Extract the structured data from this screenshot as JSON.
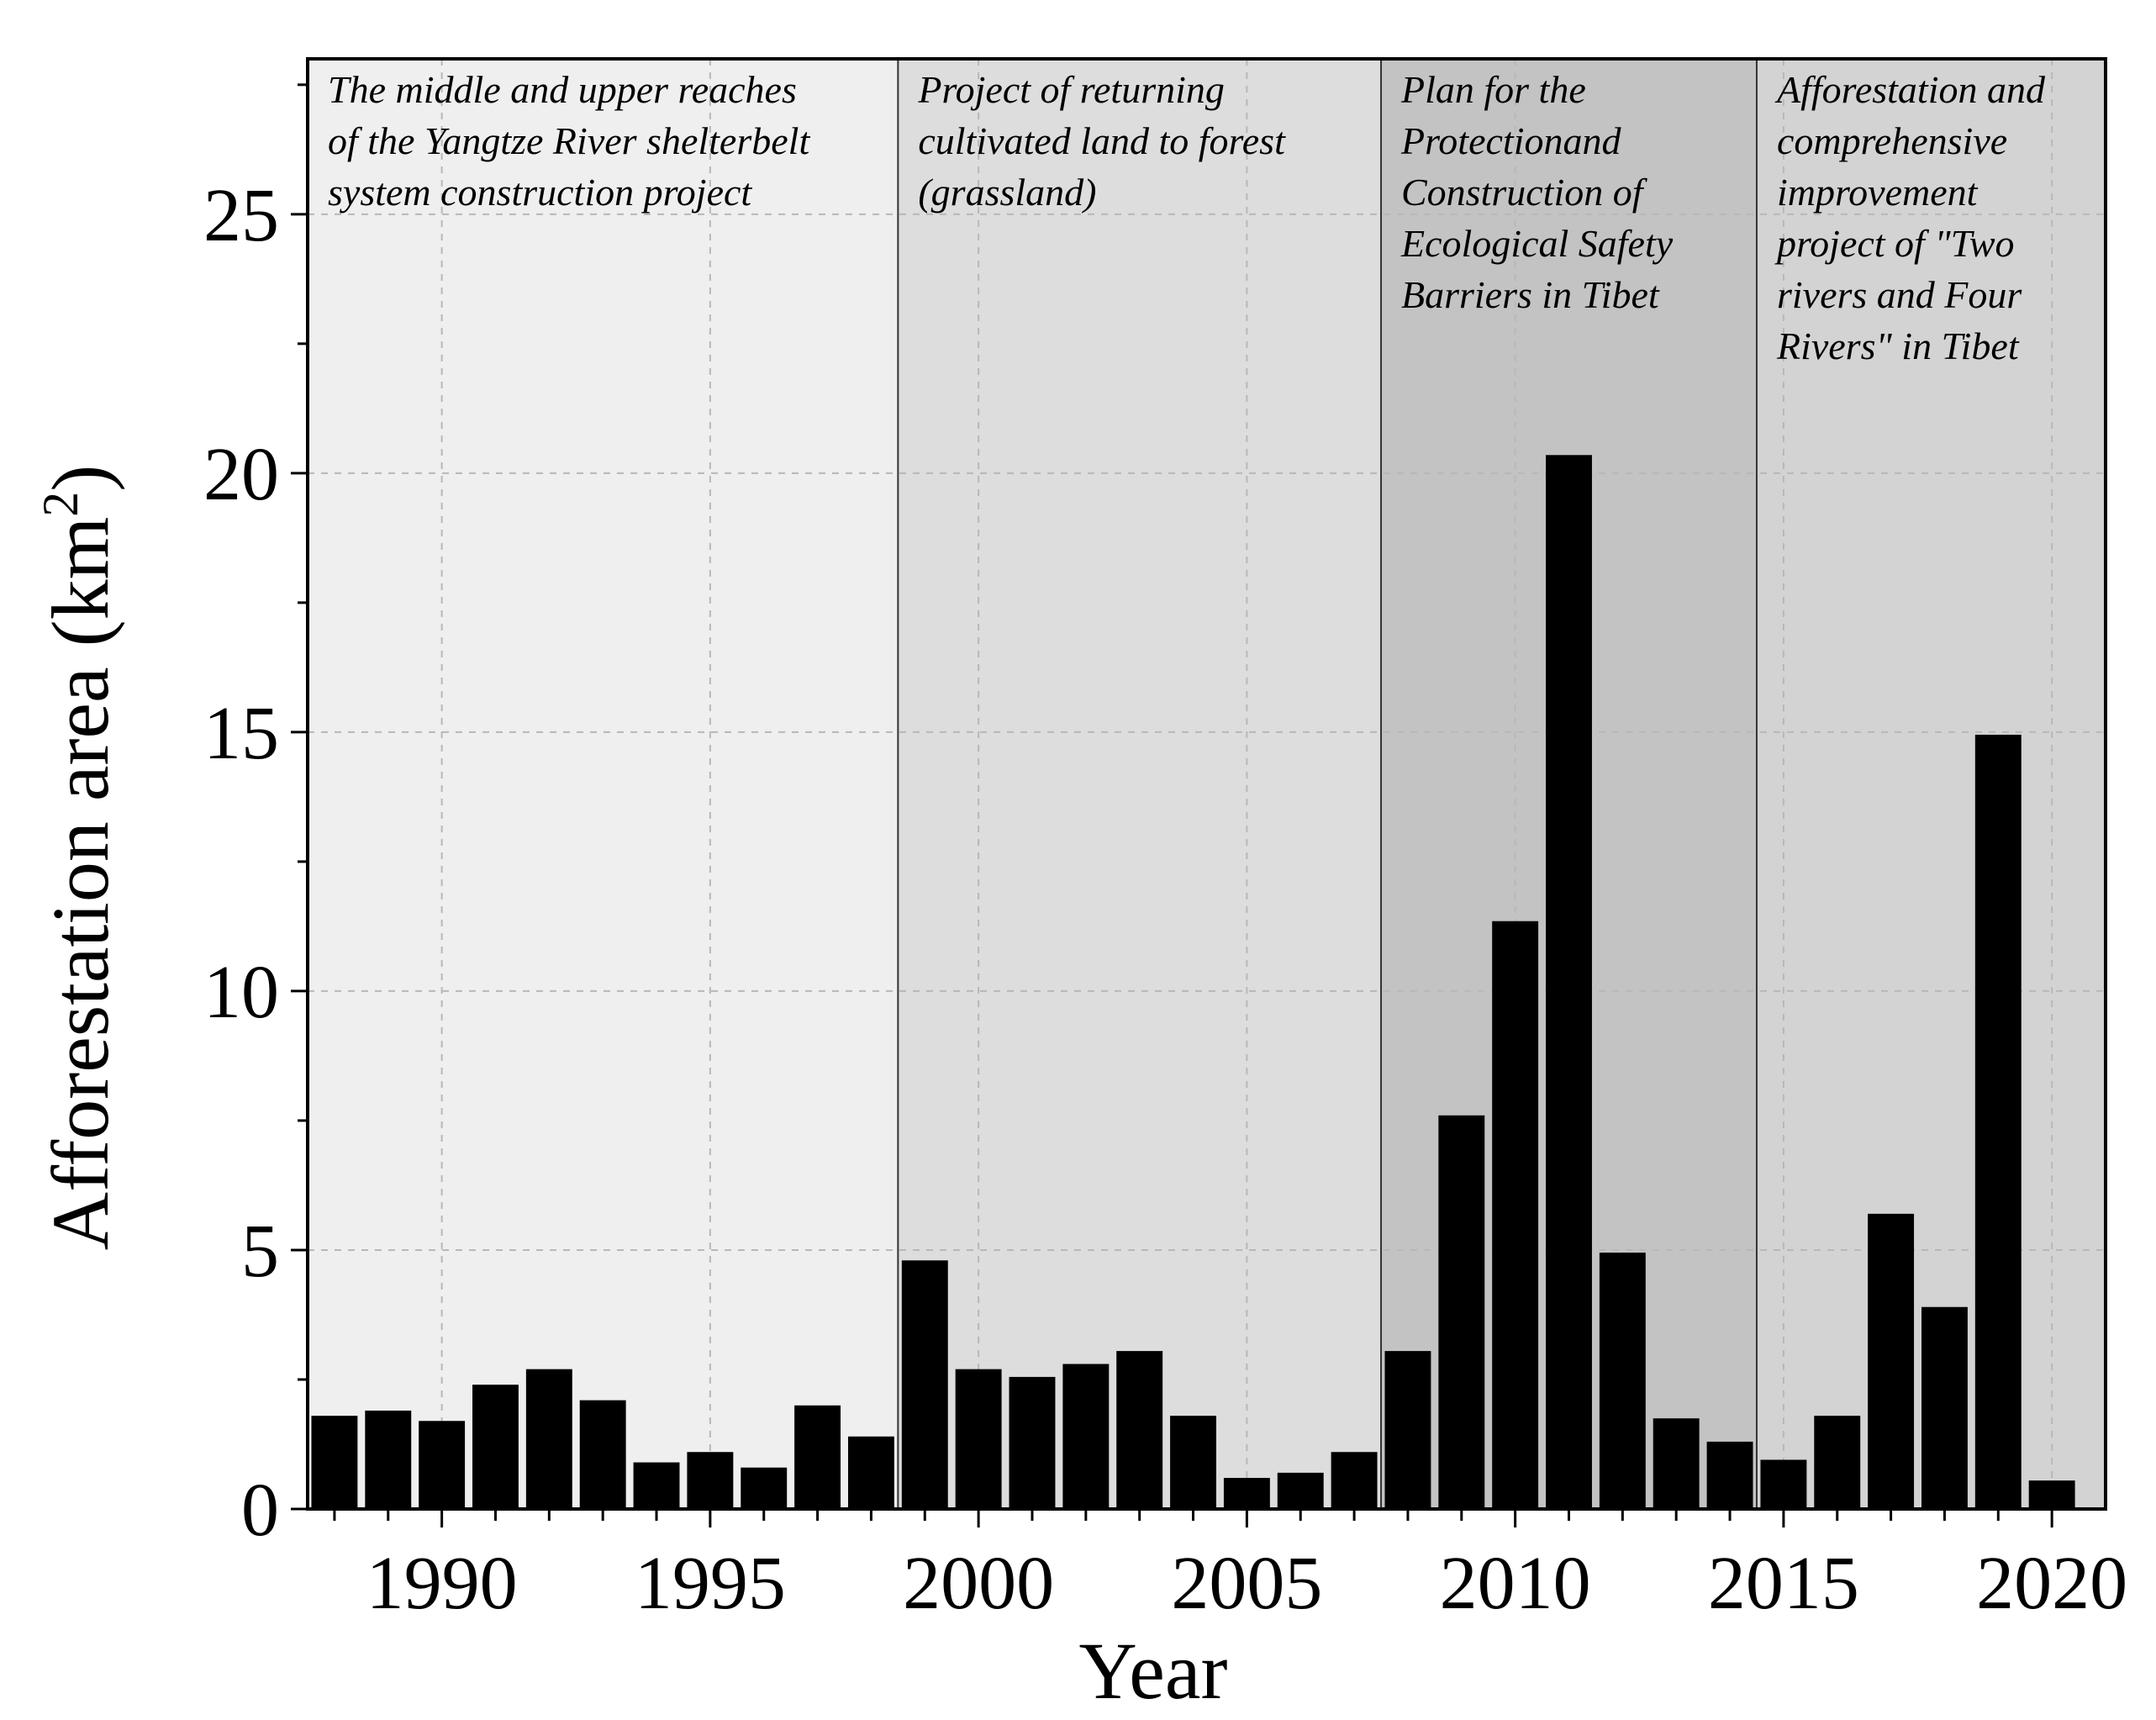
{
  "chart_data": {
    "type": "bar",
    "title": "",
    "xlabel": "Year",
    "ylabel": "Afforestation area (km",
    "ylabel_superscript": "2",
    "ylabel_close": ")",
    "xlim": [
      1987.5,
      2021
    ],
    "ylim": [
      0,
      28
    ],
    "x_ticks": [
      1990,
      1995,
      2000,
      2005,
      2010,
      2015,
      2020
    ],
    "x_tick_labels": [
      "1990",
      "1995",
      "2000",
      "2005",
      "2010",
      "2015",
      "2020"
    ],
    "y_ticks": [
      0,
      5,
      10,
      15,
      20,
      25
    ],
    "y_tick_labels": [
      "0",
      "5",
      "10",
      "15",
      "20",
      "25"
    ],
    "grid": true,
    "categories": [
      1988,
      1989,
      1990,
      1991,
      1992,
      1993,
      1994,
      1995,
      1996,
      1997,
      1998,
      1999,
      2000,
      2001,
      2002,
      2003,
      2004,
      2005,
      2006,
      2007,
      2008,
      2009,
      2010,
      2011,
      2012,
      2013,
      2014,
      2015,
      2016,
      2017,
      2018,
      2019,
      2020
    ],
    "values": [
      1.8,
      1.9,
      1.7,
      2.4,
      2.7,
      2.1,
      0.9,
      1.1,
      0.8,
      2.0,
      1.4,
      4.8,
      2.7,
      2.55,
      2.8,
      3.05,
      1.8,
      0.6,
      0.7,
      1.1,
      3.05,
      7.6,
      11.35,
      20.35,
      4.95,
      1.75,
      1.3,
      0.95,
      1.8,
      5.7,
      3.9,
      14.95,
      0.55
    ],
    "bar_color": "#000000",
    "phases": [
      {
        "start": 1987.5,
        "end": 1998.5,
        "color": "#efefef",
        "label_lines": [
          "The middle and upper reaches",
          "of the Yangtze River shelterbelt",
          "system construction project"
        ]
      },
      {
        "start": 1998.5,
        "end": 2007.5,
        "color": "#dddddd",
        "label_lines": [
          "Project of returning",
          "cultivated land to forest",
          "(grassland)"
        ]
      },
      {
        "start": 2007.5,
        "end": 2014.5,
        "color": "#c3c3c3",
        "label_lines": [
          "Plan for the",
          "Protectionand",
          "Construction of",
          "Ecological Safety",
          "Barriers in Tibet"
        ]
      },
      {
        "start": 2014.5,
        "end": 2021,
        "color": "#d3d3d3",
        "label_lines": [
          "Afforestation and",
          "comprehensive",
          "improvement",
          "project of \"Two",
          "rivers and Four",
          "Rivers\" in Tibet"
        ]
      }
    ]
  }
}
